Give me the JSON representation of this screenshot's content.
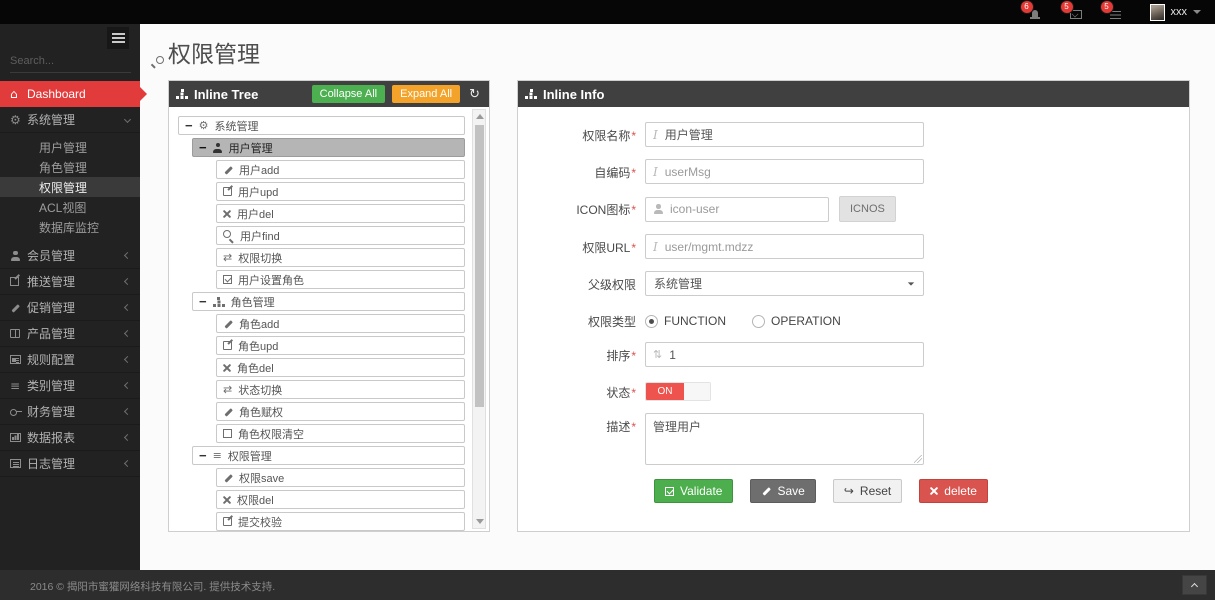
{
  "topbar": {
    "badges": [
      "6",
      "5",
      "5"
    ],
    "user_name": "xxx"
  },
  "sidebar": {
    "search_placeholder": "Search...",
    "dashboard_label": "Dashboard",
    "system_label": "系统管理",
    "system_submenu": [
      "用户管理",
      "角色管理",
      "权限管理",
      "ACL视图",
      "数据库监控"
    ],
    "menu": [
      {
        "label": "会员管理",
        "icon": "user-icon"
      },
      {
        "label": "推送管理",
        "icon": "share-icon"
      },
      {
        "label": "促销管理",
        "icon": "pencil-icon"
      },
      {
        "label": "产品管理",
        "icon": "book-icon"
      },
      {
        "label": "规则配置",
        "icon": "newspaper-icon"
      },
      {
        "label": "类别管理",
        "icon": "list-icon"
      },
      {
        "label": "财务管理",
        "icon": "key-icon"
      },
      {
        "label": "数据报表",
        "icon": "chart-icon"
      },
      {
        "label": "日志管理",
        "icon": "list-alt-icon"
      }
    ]
  },
  "page": {
    "title": "权限管理"
  },
  "tree": {
    "title": "Inline Tree",
    "collapse_all": "Collapse All",
    "expand_all": "Expand All",
    "minus": "−",
    "items": [
      {
        "label": "系统管理",
        "icon": "gears-icon",
        "level": 0,
        "parent": true
      },
      {
        "label": "用户管理",
        "icon": "user-icon",
        "level": 1,
        "parent": true,
        "selected": true
      },
      {
        "label": "用户add",
        "icon": "pencil-icon",
        "level": 2
      },
      {
        "label": "用户upd",
        "icon": "edit-icon",
        "level": 2
      },
      {
        "label": "用户del",
        "icon": "x-icon",
        "level": 2
      },
      {
        "label": "用户find",
        "icon": "search-icon",
        "level": 2
      },
      {
        "label": "权限切换",
        "icon": "retweet-icon",
        "level": 2
      },
      {
        "label": "用户设置角色",
        "icon": "check-square-icon",
        "level": 2
      },
      {
        "label": "角色管理",
        "icon": "sitemap-icon",
        "level": 1,
        "parent": true
      },
      {
        "label": "角色add",
        "icon": "pencil-icon",
        "level": 2
      },
      {
        "label": "角色upd",
        "icon": "edit-icon",
        "level": 2
      },
      {
        "label": "角色del",
        "icon": "x-icon",
        "level": 2
      },
      {
        "label": "状态切换",
        "icon": "retweet-icon",
        "level": 2
      },
      {
        "label": "角色赋权",
        "icon": "pencil-icon",
        "level": 2
      },
      {
        "label": "角色权限清空",
        "icon": "square-icon",
        "level": 2
      },
      {
        "label": "权限管理",
        "icon": "list-icon",
        "level": 1,
        "parent": true
      },
      {
        "label": "权限save",
        "icon": "pencil-icon",
        "level": 2
      },
      {
        "label": "权限del",
        "icon": "x-icon",
        "level": 2
      },
      {
        "label": "提交校验",
        "icon": "edit-icon",
        "level": 2
      }
    ]
  },
  "info": {
    "title": "Inline Info",
    "fields": {
      "name": {
        "label": "权限名称",
        "mark": "*",
        "value": "用户管理"
      },
      "code": {
        "label": "自编码",
        "mark": "*",
        "value": "userMsg"
      },
      "icon": {
        "label": "ICON图标",
        "mark": "*",
        "value": "icon-user",
        "button": "ICNOS"
      },
      "url": {
        "label": "权限URL",
        "mark": "*",
        "value": "user/mgmt.mdzz"
      },
      "parent": {
        "label": "父级权限",
        "mark": "",
        "value": "系统管理"
      },
      "type": {
        "label": "权限类型",
        "mark": "",
        "options": [
          "FUNCTION",
          "OPERATION"
        ],
        "selected": "FUNCTION"
      },
      "order": {
        "label": "排序",
        "mark": "*",
        "value": "1"
      },
      "status": {
        "label": "状态",
        "mark": "*",
        "value": "ON"
      },
      "desc": {
        "label": "描述",
        "mark": "*",
        "value": "管理用户"
      }
    },
    "buttons": {
      "validate": "Validate",
      "save": "Save",
      "reset": "Reset",
      "delete": "delete"
    }
  },
  "footer": {
    "copyright": "2016 © 揭阳市蜜獾网络科技有限公司. 提供技术支持."
  }
}
